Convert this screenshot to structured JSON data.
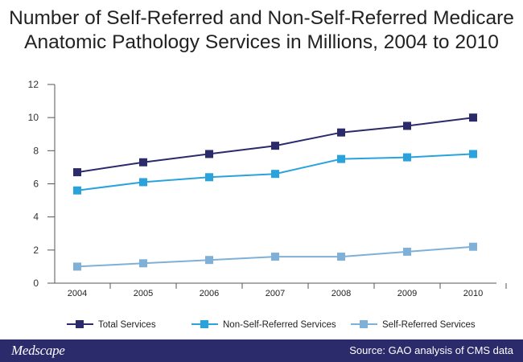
{
  "chart_data": {
    "type": "line",
    "title_lines": [
      "Number of Self-Referred and Non-Self-Referred Medicare",
      "Anatomic Pathology Services in Millions, 2004 to 2010"
    ],
    "categories": [
      "2004",
      "2005",
      "2006",
      "2007",
      "2008",
      "2009",
      "2010"
    ],
    "yticks": [
      "0",
      "2",
      "4",
      "6",
      "8",
      "10",
      "12"
    ],
    "ylim": [
      0,
      12
    ],
    "grid": false,
    "legend_position": "bottom",
    "series": [
      {
        "name": "Total Services",
        "color": "#2b2a6b",
        "values": [
          6.7,
          7.3,
          7.8,
          8.3,
          9.1,
          9.5,
          10.0
        ]
      },
      {
        "name": "Non-Self-Referred Services",
        "color": "#2aa3dc",
        "values": [
          5.6,
          6.1,
          6.4,
          6.6,
          7.5,
          7.6,
          7.8
        ]
      },
      {
        "name": "Self-Referred Services",
        "color": "#7fb0d8",
        "values": [
          1.0,
          1.2,
          1.4,
          1.6,
          1.6,
          1.9,
          2.2
        ]
      }
    ]
  },
  "footer": {
    "logo": "Medscape",
    "source": "Source: GAO analysis of CMS data"
  }
}
